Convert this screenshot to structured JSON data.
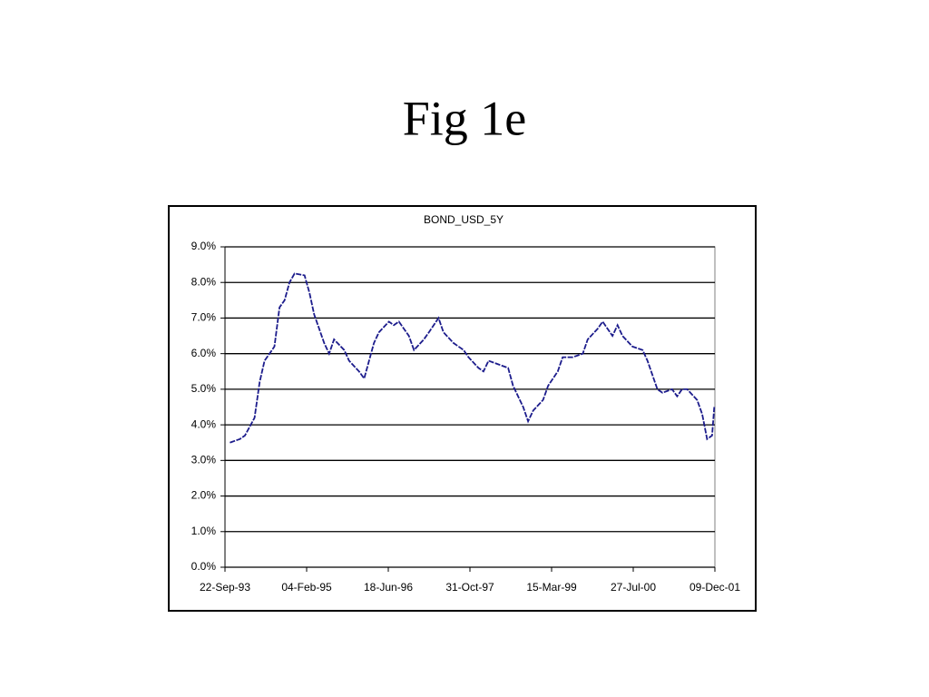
{
  "title": "Fig 1e",
  "chart_data": {
    "type": "line",
    "title": "BOND_USD_5Y",
    "x": [
      "22-Oct-93",
      "22-Dec-93",
      "22-Jan-94",
      "22-Mar-94",
      "22-Apr-94",
      "22-May-94",
      "22-Jun-94",
      "22-Jul-94",
      "22-Aug-94",
      "22-Sep-94",
      "22-Oct-94",
      "22-Nov-94",
      "22-Jan-95",
      "22-Feb-95",
      "22-Mar-95",
      "22-May-95",
      "22-Jun-95",
      "22-Jul-95",
      "22-Sep-95",
      "22-Oct-95",
      "22-Dec-95",
      "22-Jan-96",
      "22-Mar-96",
      "22-Apr-96",
      "22-Jun-96",
      "22-Jul-96",
      "22-Aug-96",
      "22-Oct-96",
      "22-Nov-96",
      "22-Jan-97",
      "22-Feb-97",
      "22-Apr-97",
      "22-May-97",
      "22-Jul-97",
      "22-Sep-97",
      "22-Oct-97",
      "22-Dec-97",
      "22-Jan-98",
      "22-Feb-98",
      "22-Apr-98",
      "22-Jun-98",
      "22-Jul-98",
      "22-Sep-98",
      "22-Oct-98",
      "22-Nov-98",
      "22-Jan-99",
      "22-Feb-99",
      "22-Apr-99",
      "22-May-99",
      "22-Jul-99",
      "22-Sep-99",
      "22-Oct-99",
      "22-Dec-99",
      "22-Jan-00",
      "22-Mar-00",
      "22-Apr-00",
      "22-May-00",
      "22-Jul-00",
      "22-Sep-00",
      "22-Oct-00",
      "22-Dec-00",
      "22-Jan-01",
      "22-Mar-01",
      "22-Apr-01",
      "22-May-01",
      "22-Jun-01",
      "22-Aug-01",
      "22-Sep-01",
      "22-Oct-01",
      "22-Nov-01",
      "05-Dec-01"
    ],
    "series": [
      {
        "name": "BOND_USD_5Y",
        "color": "#1c1c8c",
        "values": [
          3.5,
          3.6,
          3.7,
          4.2,
          5.2,
          5.8,
          6.0,
          6.2,
          7.3,
          7.5,
          8.0,
          8.25,
          8.2,
          7.7,
          7.1,
          6.3,
          6.0,
          6.4,
          6.1,
          5.8,
          5.5,
          5.3,
          6.3,
          6.6,
          6.9,
          6.8,
          6.9,
          6.5,
          6.1,
          6.4,
          6.6,
          7.0,
          6.6,
          6.3,
          6.1,
          5.9,
          5.6,
          5.5,
          5.8,
          5.7,
          5.6,
          5.1,
          4.5,
          4.1,
          4.4,
          4.7,
          5.1,
          5.5,
          5.9,
          5.9,
          6.0,
          6.4,
          6.7,
          6.9,
          6.5,
          6.8,
          6.5,
          6.2,
          6.1,
          5.8,
          5.0,
          4.9,
          5.0,
          4.8,
          5.0,
          5.0,
          4.7,
          4.3,
          3.6,
          3.7,
          4.5
        ]
      }
    ],
    "xlim": [
      "22-Sep-93",
      "09-Dec-01"
    ],
    "xticks": [
      "22-Sep-93",
      "04-Feb-95",
      "18-Jun-96",
      "31-Oct-97",
      "15-Mar-99",
      "27-Jul-00",
      "09-Dec-01"
    ],
    "ylim": [
      0,
      9
    ],
    "yticks": [
      {
        "value": 0,
        "label": "0.0%"
      },
      {
        "value": 1,
        "label": "1.0%"
      },
      {
        "value": 2,
        "label": "2.0%"
      },
      {
        "value": 3,
        "label": "3.0%"
      },
      {
        "value": 4,
        "label": "4.0%"
      },
      {
        "value": 5,
        "label": "5.0%"
      },
      {
        "value": 6,
        "label": "6.0%"
      },
      {
        "value": 7,
        "label": "7.0%"
      },
      {
        "value": 8,
        "label": "8.0%"
      },
      {
        "value": 9,
        "label": "9.0%"
      }
    ],
    "grid": true
  }
}
